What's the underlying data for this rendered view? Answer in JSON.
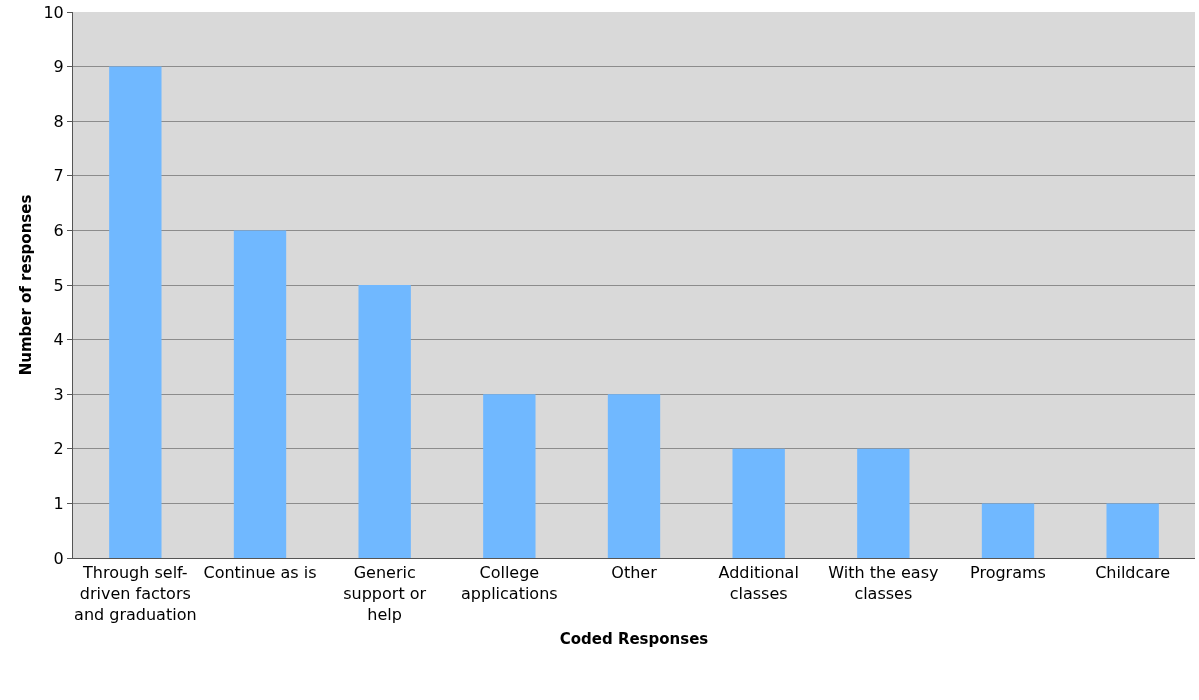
{
  "chart_data": {
    "type": "bar",
    "xlabel": "Coded Responses",
    "ylabel": "Number of responses",
    "categories": [
      "Through self-driven factors and graduation",
      "Continue as is",
      "Generic support or help",
      "College applications",
      "Other",
      "Additional classes",
      "With the easy classes",
      "Programs",
      "Childcare"
    ],
    "values": [
      9,
      6,
      5,
      3,
      3,
      2,
      2,
      1,
      1
    ],
    "color": "#70b8ff",
    "ylim": [
      0,
      10
    ],
    "yticks": [
      0,
      1,
      2,
      3,
      4,
      5,
      6,
      7,
      8,
      9,
      10
    ],
    "grid": "y",
    "legend": false
  }
}
